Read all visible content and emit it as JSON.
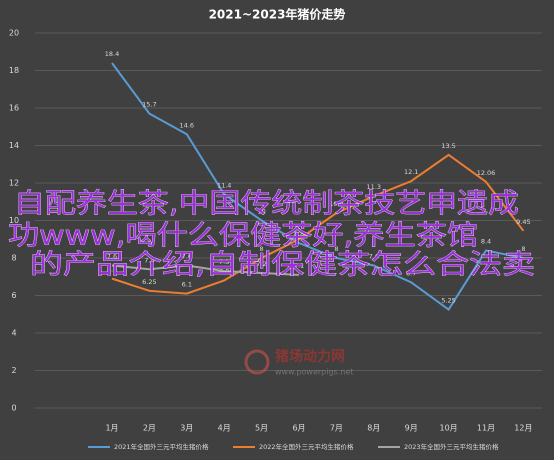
{
  "chart_data": {
    "type": "line",
    "title": "2021~2023年猪价走势",
    "categories": [
      "1月",
      "2月",
      "3月",
      "4月",
      "5月",
      "6月",
      "7月",
      "8月",
      "9月",
      "10月",
      "11月",
      "12月"
    ],
    "series": [
      {
        "name": "2021年全国外三元平均生猪价格",
        "color": "#5b9bd5",
        "values": [
          18.4,
          15.7,
          14.6,
          11.4,
          10.0,
          8.8,
          8.0,
          7.6,
          6.7,
          5.25,
          8.4,
          8
        ]
      },
      {
        "name": "2022年全国外三元平均生猪价格",
        "color": "#ed7d31",
        "values": [
          6.9,
          6.25,
          6.1,
          6.8,
          8.0,
          9.0,
          10.4,
          11.3,
          12.1,
          13.5,
          12.06,
          9.45
        ]
      },
      {
        "name": "2023年全国外三元平均生猪价格",
        "color": "#a5a5a5",
        "values": [
          7.6,
          7.4,
          7.6,
          7.3,
          7.2,
          7.1,
          null,
          null,
          null,
          null,
          null,
          null
        ]
      }
    ],
    "ylim": [
      0,
      20
    ],
    "yticks": [
      0,
      2,
      4,
      6,
      8,
      10,
      12,
      14,
      16,
      18,
      20
    ],
    "grid": true,
    "legend": "bottom",
    "watermark_logo": "猪场动力网",
    "watermark_url": "www.powerpigs.net",
    "overlay_text": [
      "自配养生茶,中国传统制茶技艺申遗成",
      "功www,喝什么保健茶好,养生茶馆",
      "的产品介绍,自制保健茶怎么合法卖"
    ]
  }
}
